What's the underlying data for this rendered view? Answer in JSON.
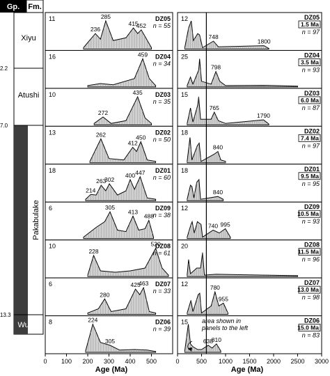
{
  "header": {
    "group_label": "Gp.",
    "formation_label": "Fm."
  },
  "column_ages": [
    "2.2",
    "7.0",
    "13.3"
  ],
  "formations": [
    "Xiyu",
    "Atushi",
    "Pakabulake",
    "Wuqia"
  ],
  "colors": {
    "fill": "#d0d0d0",
    "outline": "#000000",
    "group_bar": "#3d3d3d"
  },
  "left_axis": {
    "label": "Age (Ma)",
    "ticks": [
      "0",
      "100",
      "200",
      "300",
      "400",
      "500"
    ]
  },
  "right_axis": {
    "label": "Age (Ma)",
    "ticks": [
      "0",
      "500",
      "1000",
      "1500",
      "2000",
      "2500",
      "3000"
    ]
  },
  "annotation": {
    "text_line1": "area shown in",
    "text_line2": "panels to the left"
  },
  "chart_data": {
    "type": "area",
    "xlim_left": [
      0,
      600
    ],
    "xlim_right": [
      0,
      3000
    ],
    "samples": [
      {
        "id": "DZ05",
        "n_left": "n = 55",
        "n_right": "n = 97",
        "count_left": "11",
        "count_right": "12",
        "age": "1.5 Ma",
        "peaks_left": [
          {
            "x": 236,
            "label": "236"
          },
          {
            "x": 285,
            "label": "285"
          },
          {
            "x": 415,
            "label": "415"
          },
          {
            "x": 452,
            "label": "452"
          }
        ],
        "peaks_right": [
          {
            "x": 748,
            "label": "748"
          },
          {
            "x": 1800,
            "label": "1800"
          }
        ],
        "left_curve": [
          [
            180,
            0.05
          ],
          [
            236,
            0.55
          ],
          [
            260,
            0.35
          ],
          [
            285,
            1.0
          ],
          [
            320,
            0.3
          ],
          [
            380,
            0.4
          ],
          [
            415,
            0.75
          ],
          [
            435,
            0.55
          ],
          [
            452,
            0.68
          ],
          [
            500,
            0.05
          ]
        ],
        "right_curve": [
          [
            150,
            0.05
          ],
          [
            230,
            0.75
          ],
          [
            285,
            1.0
          ],
          [
            330,
            0.3
          ],
          [
            420,
            0.55
          ],
          [
            460,
            0.5
          ],
          [
            520,
            0.05
          ],
          [
            748,
            0.28
          ],
          [
            850,
            0.08
          ],
          [
            1800,
            0.12
          ],
          [
            1900,
            0.02
          ]
        ]
      },
      {
        "id": "DZ04",
        "n_left": "n = 34",
        "n_right": "n = 93",
        "count_left": "16",
        "count_right": "25",
        "age": "3.5 Ma",
        "peaks_left": [
          {
            "x": 459,
            "label": "459"
          }
        ],
        "peaks_right": [
          {
            "x": 798,
            "label": "798"
          }
        ],
        "left_curve": [
          [
            200,
            0.05
          ],
          [
            260,
            0.12
          ],
          [
            320,
            0.08
          ],
          [
            420,
            0.3
          ],
          [
            459,
            1.0
          ],
          [
            490,
            0.3
          ],
          [
            520,
            0.05
          ]
        ],
        "right_curve": [
          [
            200,
            0.05
          ],
          [
            270,
            0.35
          ],
          [
            320,
            0.1
          ],
          [
            440,
            0.6
          ],
          [
            460,
            1.0
          ],
          [
            500,
            0.2
          ],
          [
            700,
            0.1
          ],
          [
            798,
            0.55
          ],
          [
            880,
            0.2
          ],
          [
            1000,
            0.05
          ],
          [
            1800,
            0.06
          ],
          [
            2500,
            0.03
          ]
        ]
      },
      {
        "id": "DZ03",
        "n_left": "n = 35",
        "n_right": "n = 87",
        "count_left": "10",
        "count_right": "15",
        "age": "6.0 Ma",
        "peaks_left": [
          {
            "x": 272,
            "label": "272"
          },
          {
            "x": 435,
            "label": "435"
          }
        ],
        "peaks_right": [
          {
            "x": 765,
            "label": "765"
          },
          {
            "x": 1790,
            "label": "1790"
          }
        ],
        "left_curve": [
          [
            230,
            0.05
          ],
          [
            272,
            0.28
          ],
          [
            310,
            0.05
          ],
          [
            380,
            0.15
          ],
          [
            435,
            1.0
          ],
          [
            470,
            0.25
          ],
          [
            500,
            0.05
          ]
        ],
        "right_curve": [
          [
            200,
            0.05
          ],
          [
            270,
            0.6
          ],
          [
            320,
            0.1
          ],
          [
            420,
            0.7
          ],
          [
            440,
            1.0
          ],
          [
            480,
            0.2
          ],
          [
            700,
            0.2
          ],
          [
            765,
            0.45
          ],
          [
            850,
            0.15
          ],
          [
            1000,
            0.05
          ],
          [
            1790,
            0.18
          ],
          [
            1900,
            0.03
          ]
        ]
      },
      {
        "id": "DZ02",
        "n_left": "n = 50",
        "n_right": "n = 97",
        "count_left": "13",
        "count_right": "18",
        "age": "7.4 Ma",
        "peaks_left": [
          {
            "x": 262,
            "label": "262"
          },
          {
            "x": 412,
            "label": "412"
          },
          {
            "x": 450,
            "label": "450"
          }
        ],
        "peaks_right": [
          {
            "x": 840,
            "label": "840"
          }
        ],
        "left_curve": [
          [
            210,
            0.05
          ],
          [
            262,
            0.85
          ],
          [
            300,
            0.15
          ],
          [
            370,
            0.1
          ],
          [
            412,
            0.55
          ],
          [
            430,
            0.4
          ],
          [
            450,
            0.75
          ],
          [
            480,
            0.1
          ],
          [
            520,
            0.05
          ]
        ],
        "right_curve": [
          [
            200,
            0.05
          ],
          [
            260,
            0.9
          ],
          [
            300,
            0.1
          ],
          [
            410,
            0.6
          ],
          [
            450,
            0.7
          ],
          [
            490,
            0.05
          ],
          [
            760,
            0.3
          ],
          [
            840,
            0.4
          ],
          [
            900,
            0.1
          ],
          [
            1000,
            0.05
          ]
        ]
      },
      {
        "id": "DZ01",
        "n_left": "n = 60",
        "n_right": "n = 95",
        "count_left": "18",
        "count_right": "18",
        "age": "9.5 Ma",
        "peaks_left": [
          {
            "x": 214,
            "label": "214"
          },
          {
            "x": 263,
            "label": "263"
          },
          {
            "x": 302,
            "label": "302"
          },
          {
            "x": 400,
            "label": "400"
          },
          {
            "x": 447,
            "label": "447"
          }
        ],
        "peaks_right": [
          {
            "x": 840,
            "label": "840"
          }
        ],
        "left_curve": [
          [
            190,
            0.05
          ],
          [
            214,
            0.22
          ],
          [
            240,
            0.2
          ],
          [
            263,
            0.55
          ],
          [
            285,
            0.35
          ],
          [
            302,
            0.6
          ],
          [
            340,
            0.2
          ],
          [
            380,
            0.35
          ],
          [
            400,
            0.75
          ],
          [
            420,
            0.4
          ],
          [
            447,
            0.85
          ],
          [
            480,
            0.1
          ],
          [
            520,
            0.05
          ]
        ],
        "right_curve": [
          [
            200,
            0.05
          ],
          [
            270,
            0.55
          ],
          [
            300,
            0.5
          ],
          [
            340,
            0.1
          ],
          [
            400,
            0.65
          ],
          [
            447,
            0.75
          ],
          [
            480,
            0.05
          ],
          [
            840,
            0.15
          ],
          [
            950,
            0.05
          ]
        ]
      },
      {
        "id": "DZ09",
        "n_left": "n = 38",
        "n_right": "n = 93",
        "count_left": "6",
        "count_right": "12",
        "age": "10.5 Ma",
        "peaks_left": [
          {
            "x": 305,
            "label": "305"
          },
          {
            "x": 413,
            "label": "413"
          },
          {
            "x": 488,
            "label": "488"
          }
        ],
        "peaks_right": [
          {
            "x": 740,
            "label": "740"
          },
          {
            "x": 995,
            "label": "995"
          }
        ],
        "left_curve": [
          [
            180,
            0.05
          ],
          [
            240,
            0.4
          ],
          [
            280,
            0.6
          ],
          [
            305,
            0.95
          ],
          [
            340,
            0.3
          ],
          [
            380,
            0.25
          ],
          [
            413,
            0.8
          ],
          [
            440,
            0.3
          ],
          [
            470,
            0.35
          ],
          [
            488,
            0.65
          ],
          [
            510,
            0.05
          ]
        ],
        "right_curve": [
          [
            200,
            0.05
          ],
          [
            280,
            0.5
          ],
          [
            305,
            0.6
          ],
          [
            350,
            0.2
          ],
          [
            413,
            0.6
          ],
          [
            490,
            0.5
          ],
          [
            520,
            0.05
          ],
          [
            740,
            0.3
          ],
          [
            870,
            0.2
          ],
          [
            995,
            0.35
          ],
          [
            1100,
            0.05
          ]
        ]
      },
      {
        "id": "DZ08",
        "n_left": "n = 61",
        "n_right": "n = 96",
        "count_left": "10",
        "count_right": "20",
        "age": "11.5 Ma",
        "peaks_left": [
          {
            "x": 228,
            "label": "228"
          },
          {
            "x": 520,
            "label": "520"
          }
        ],
        "peaks_right": [],
        "left_curve": [
          [
            200,
            0.05
          ],
          [
            228,
            0.75
          ],
          [
            260,
            0.2
          ],
          [
            330,
            0.15
          ],
          [
            400,
            0.2
          ],
          [
            470,
            0.3
          ],
          [
            520,
            1.0
          ],
          [
            550,
            0.3
          ],
          [
            580,
            0.05
          ]
        ],
        "right_curve": [
          [
            200,
            0.05
          ],
          [
            230,
            0.6
          ],
          [
            270,
            0.1
          ],
          [
            400,
            0.3
          ],
          [
            480,
            0.3
          ],
          [
            520,
            0.85
          ],
          [
            560,
            0.05
          ],
          [
            800,
            0.08
          ],
          [
            1800,
            0.05
          ],
          [
            2500,
            0.03
          ]
        ]
      },
      {
        "id": "DZ07",
        "n_left": "n = 33",
        "n_right": "n = 98",
        "count_left": "6",
        "count_right": "12",
        "age": "13.0 Ma",
        "peaks_left": [
          {
            "x": 280,
            "label": "280"
          },
          {
            "x": 425,
            "label": "425"
          },
          {
            "x": 463,
            "label": "463"
          }
        ],
        "peaks_right": [
          {
            "x": 780,
            "label": "780"
          },
          {
            "x": 955,
            "label": "955"
          }
        ],
        "left_curve": [
          [
            200,
            0.05
          ],
          [
            250,
            0.2
          ],
          [
            280,
            0.55
          ],
          [
            310,
            0.1
          ],
          [
            380,
            0.2
          ],
          [
            425,
            0.9
          ],
          [
            445,
            0.7
          ],
          [
            463,
            0.95
          ],
          [
            490,
            0.1
          ],
          [
            520,
            0.05
          ]
        ],
        "right_curve": [
          [
            200,
            0.05
          ],
          [
            280,
            0.5
          ],
          [
            320,
            0.1
          ],
          [
            430,
            0.7
          ],
          [
            463,
            0.75
          ],
          [
            500,
            0.05
          ],
          [
            700,
            0.3
          ],
          [
            780,
            0.8
          ],
          [
            860,
            0.3
          ],
          [
            955,
            0.4
          ],
          [
            1050,
            0.05
          ]
        ]
      },
      {
        "id": "DZ06",
        "n_left": "n = 39",
        "n_right": "n = 83",
        "count_left": "8",
        "count_right": "15",
        "age": "15.0 Ma",
        "peaks_left": [
          {
            "x": 224,
            "label": "224"
          },
          {
            "x": 305,
            "label": "305"
          }
        ],
        "peaks_right": [
          {
            "x": 638,
            "label": "638"
          },
          {
            "x": 810,
            "label": "810"
          }
        ],
        "left_curve": [
          [
            190,
            0.05
          ],
          [
            224,
            1.0
          ],
          [
            260,
            0.35
          ],
          [
            305,
            0.25
          ],
          [
            350,
            0.08
          ],
          [
            420,
            0.1
          ],
          [
            480,
            0.08
          ],
          [
            520,
            0.03
          ]
        ],
        "right_curve": [
          [
            150,
            0.05
          ],
          [
            224,
            1.0
          ],
          [
            270,
            0.3
          ],
          [
            320,
            0.2
          ],
          [
            420,
            0.1
          ],
          [
            500,
            0.1
          ],
          [
            638,
            0.25
          ],
          [
            720,
            0.15
          ],
          [
            810,
            0.3
          ],
          [
            900,
            0.05
          ]
        ]
      }
    ]
  }
}
